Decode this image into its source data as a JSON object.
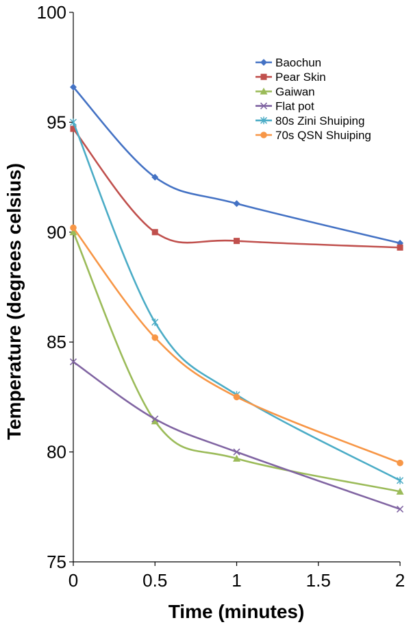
{
  "chart_data": {
    "type": "line",
    "smooth": true,
    "xlabel": "Time (minutes)",
    "ylabel": "Temperature (degrees celsius)",
    "xlim": [
      0,
      2
    ],
    "ylim": [
      75,
      100
    ],
    "x_ticks": [
      "0",
      "0.5",
      "1",
      "1.5",
      "2"
    ],
    "y_ticks": [
      "75",
      "80",
      "85",
      "90",
      "95",
      "100"
    ],
    "grid": false,
    "legend_position": "top-right",
    "x": [
      0,
      0.5,
      1,
      2
    ],
    "series": [
      {
        "name": "Baochun",
        "color": "#4472C4",
        "marker": "diamond",
        "values": [
          96.6,
          92.5,
          91.3,
          89.5
        ]
      },
      {
        "name": "Pear Skin",
        "color": "#C0504D",
        "marker": "square",
        "values": [
          94.7,
          90.0,
          89.6,
          89.3
        ]
      },
      {
        "name": "Gaiwan",
        "color": "#9BBB59",
        "marker": "triangle",
        "values": [
          90.0,
          81.4,
          79.7,
          78.2
        ]
      },
      {
        "name": "Flat pot",
        "color": "#8064A2",
        "marker": "x",
        "values": [
          84.1,
          81.5,
          80.0,
          77.4
        ]
      },
      {
        "name": "80s Zini Shuiping",
        "color": "#4BACC6",
        "marker": "star",
        "values": [
          95.0,
          85.9,
          82.6,
          78.7
        ]
      },
      {
        "name": "70s QSN Shuiping",
        "color": "#F79646",
        "marker": "circle",
        "values": [
          90.2,
          85.2,
          82.5,
          79.5
        ]
      }
    ]
  }
}
